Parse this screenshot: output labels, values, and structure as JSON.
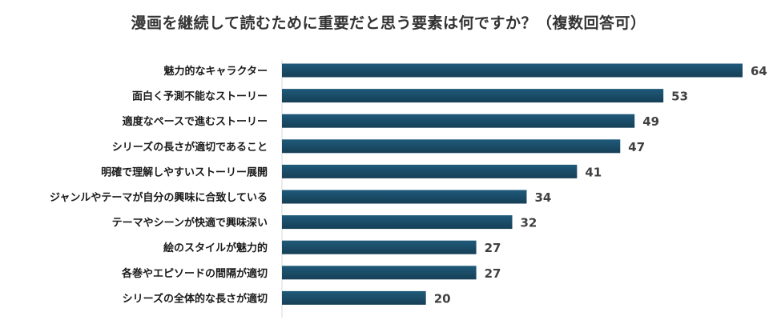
{
  "chart_data": {
    "type": "bar",
    "orientation": "horizontal",
    "title": "漫画を継続して読むために重要だと思う要素は何ですか？（複数回答可）",
    "categories": [
      "魅力的なキャラクター",
      "面白く予測不能なストーリー",
      "適度なペースで進むストーリー",
      "シリーズの長さが適切であること",
      "明確で理解しやすいストーリー展開",
      "ジャンルやテーマが自分の興味に合致している",
      "テーマやシーンが快適で興味深い",
      "絵のスタイルが魅力的",
      "各巻やエピソードの間隔が適切",
      "シリーズの全体的な長さが適切"
    ],
    "values": [
      64,
      53,
      49,
      47,
      41,
      34,
      32,
      27,
      27,
      20
    ],
    "xlim": [
      0,
      64
    ],
    "grid": false,
    "legend": false,
    "bar_color": "#1f5a7a",
    "bar_gradient_end": "#163f56"
  }
}
